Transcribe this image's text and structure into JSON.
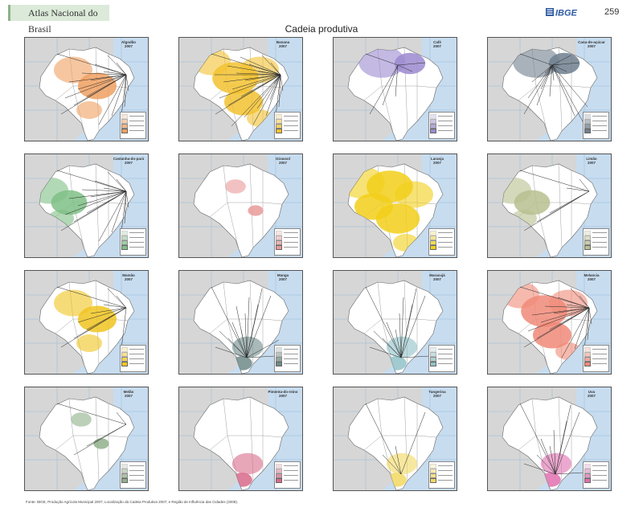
{
  "header": {
    "atlas_title": "Atlas Nacional do Brasil",
    "logo_text": "IBGE",
    "page_number": "259"
  },
  "page_title": "Cadeia produtiva",
  "colors": {
    "ocean": "#c7dcef",
    "land": "#d6d6d6",
    "brazil": "#ffffff",
    "flow": "#2a2a2a"
  },
  "maps": [
    {
      "title": "Algodão",
      "year": "2007",
      "color": "#f0a060",
      "pattern": "central",
      "flows": 18
    },
    {
      "title": "Banana",
      "year": "2007",
      "color": "#f2c230",
      "pattern": "widespread",
      "flows": 26
    },
    {
      "title": "Café",
      "year": "2007",
      "color": "#9b8ad0",
      "pattern": "north",
      "flows": 6
    },
    {
      "title": "Cana-de-açúcar",
      "year": "2007",
      "color": "#6f7f8e",
      "pattern": "north",
      "flows": 16
    },
    {
      "title": "Castanha-do-pará",
      "year": "2007",
      "color": "#7fbf86",
      "pattern": "west",
      "flows": 18
    },
    {
      "title": "Girassol",
      "year": "2007",
      "color": "#e79a98",
      "pattern": "sparse",
      "flows": 0
    },
    {
      "title": "Laranja",
      "year": "2007",
      "color": "#f2cf1a",
      "pattern": "dense",
      "flows": 0
    },
    {
      "title": "Limão",
      "year": "2007",
      "color": "#b7bf8f",
      "pattern": "west",
      "flows": 6
    },
    {
      "title": "Mamão",
      "year": "2007",
      "color": "#f0c420",
      "pattern": "central",
      "flows": 10
    },
    {
      "title": "Manga",
      "year": "2007",
      "color": "#6f8a8a",
      "pattern": "south",
      "flows": 14
    },
    {
      "title": "Maracujá",
      "year": "2007",
      "color": "#8fc2c8",
      "pattern": "south",
      "flows": 12
    },
    {
      "title": "Melancia",
      "year": "2007",
      "color": "#f08a78",
      "pattern": "widespread",
      "flows": 18
    },
    {
      "title": "Melão",
      "year": "2007",
      "color": "#8fb08a",
      "pattern": "sparse",
      "flows": 4
    },
    {
      "title": "Pimenta-do-reino",
      "year": "2007",
      "color": "#d86a8a",
      "pattern": "south",
      "flows": 0
    },
    {
      "title": "Tangerina",
      "year": "2007",
      "color": "#f2d860",
      "pattern": "south",
      "flows": 4
    },
    {
      "title": "Uva",
      "year": "2007",
      "color": "#e070b0",
      "pattern": "south",
      "flows": 10
    }
  ],
  "source_note": "Fonte: IBGE, Produção Agrícola Municipal 2007; Localização da Cadeia Produtiva 2007; e Região de Influência das Cidades (2008)."
}
